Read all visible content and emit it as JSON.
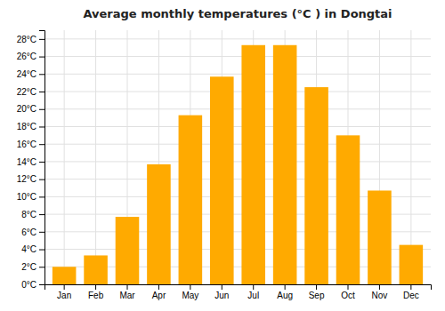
{
  "chart_data": {
    "type": "bar",
    "title": "Average monthly temperatures (°C ) in Dongtai",
    "categories": [
      "Jan",
      "Feb",
      "Mar",
      "Apr",
      "May",
      "Jun",
      "Jul",
      "Aug",
      "Sep",
      "Oct",
      "Nov",
      "Dec"
    ],
    "values": [
      2.0,
      3.3,
      7.7,
      13.7,
      19.3,
      23.7,
      27.3,
      27.3,
      22.5,
      17.0,
      10.7,
      4.5
    ],
    "color": "#FFAA00",
    "ylim": [
      0,
      29
    ],
    "yticks": [
      {
        "value": 0,
        "label": "0°C"
      },
      {
        "value": 2,
        "label": "2°C"
      },
      {
        "value": 4,
        "label": "4°C"
      },
      {
        "value": 6,
        "label": "6°C"
      },
      {
        "value": 8,
        "label": "8°C"
      },
      {
        "value": 10,
        "label": "10°C"
      },
      {
        "value": 12,
        "label": "12°C"
      },
      {
        "value": 14,
        "label": "14°C"
      },
      {
        "value": 16,
        "label": "16°C"
      },
      {
        "value": 18,
        "label": "18°C"
      },
      {
        "value": 20,
        "label": "20°C"
      },
      {
        "value": 22,
        "label": "22°C"
      },
      {
        "value": 24,
        "label": "24°C"
      },
      {
        "value": 26,
        "label": "26°C"
      },
      {
        "value": 28,
        "label": "28°C"
      }
    ],
    "grid": true
  }
}
